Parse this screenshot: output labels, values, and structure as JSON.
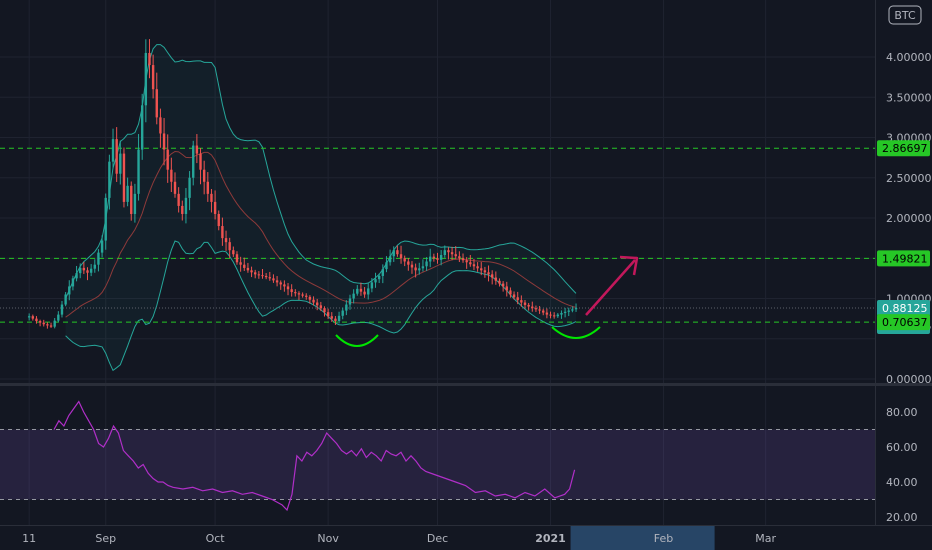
{
  "symbol_label": "BTC",
  "colors": {
    "background": "#131722",
    "grid": "#1f2330",
    "up": "#26a69a",
    "down": "#ef5350",
    "bb_band": "#26a69a",
    "bb_fill": "rgba(38,166,154,0.06)",
    "bb_basis": "#8e3a3a",
    "level_line": "#26c726",
    "rsi_line": "#b02fc8",
    "rsi_band": "rgba(126,87,194,0.18)",
    "arrow": "#c2185b",
    "smile": "#00e600"
  },
  "chart_data": [
    {
      "type": "candlestick",
      "title": "",
      "quote_unit": "BTC",
      "ylim": [
        0,
        4.5
      ],
      "y_ticks": [
        0,
        0.5,
        1.0,
        1.5,
        2.0,
        2.5,
        3.0,
        3.5,
        4.0
      ],
      "y_tick_labels": [
        "0.00000",
        "",
        "1.00000",
        "",
        "2.00000",
        "2.50000",
        "3.00000",
        "3.50000",
        "4.00000"
      ],
      "x_tick_labels": [
        "11",
        "Sep",
        "Oct",
        "Nov",
        "Dec",
        "2021",
        "Feb",
        "Mar"
      ],
      "x_tick_days": [
        0,
        21,
        51,
        82,
        112,
        143,
        174,
        202
      ],
      "x_range_days": [
        -8,
        232
      ],
      "last_data_day": 150,
      "horizontal_levels": [
        2.86697,
        1.49821,
        0.70637
      ],
      "price_labels": [
        {
          "value": 2.86697,
          "text": "2.86697",
          "kind": "level"
        },
        {
          "value": 1.49821,
          "text": "1.49821",
          "kind": "level"
        },
        {
          "value": 0.88125,
          "text": "0.88125",
          "kind": "last"
        },
        {
          "value": 0.8,
          "text": "12:17:45",
          "kind": "timer"
        },
        {
          "value": 0.70637,
          "text": "0.70637",
          "kind": "level"
        }
      ],
      "close_series": [
        [
          0,
          0.78
        ],
        [
          2,
          0.72
        ],
        [
          4,
          0.68
        ],
        [
          6,
          0.65
        ],
        [
          8,
          0.8
        ],
        [
          10,
          1.05
        ],
        [
          12,
          1.25
        ],
        [
          14,
          1.38
        ],
        [
          16,
          1.32
        ],
        [
          18,
          1.42
        ],
        [
          20,
          1.72
        ],
        [
          21,
          2.25
        ],
        [
          22,
          2.7
        ],
        [
          23,
          2.98
        ],
        [
          24,
          2.55
        ],
        [
          25,
          2.8
        ],
        [
          26,
          2.2
        ],
        [
          27,
          2.4
        ],
        [
          28,
          2.05
        ],
        [
          29,
          2.3
        ],
        [
          30,
          2.85
        ],
        [
          31,
          3.4
        ],
        [
          32,
          4.05
        ],
        [
          33,
          3.9
        ],
        [
          34,
          3.6
        ],
        [
          35,
          3.25
        ],
        [
          36,
          3.05
        ],
        [
          37,
          2.85
        ],
        [
          38,
          2.6
        ],
        [
          39,
          2.45
        ],
        [
          40,
          2.3
        ],
        [
          41,
          2.15
        ],
        [
          42,
          2.05
        ],
        [
          43,
          2.25
        ],
        [
          44,
          2.5
        ],
        [
          45,
          2.9
        ],
        [
          46,
          2.8
        ],
        [
          47,
          2.6
        ],
        [
          48,
          2.45
        ],
        [
          49,
          2.3
        ],
        [
          50,
          2.2
        ],
        [
          51,
          2.05
        ],
        [
          52,
          1.9
        ],
        [
          53,
          1.75
        ],
        [
          54,
          1.7
        ],
        [
          55,
          1.6
        ],
        [
          56,
          1.55
        ],
        [
          57,
          1.45
        ],
        [
          58,
          1.42
        ],
        [
          59,
          1.38
        ],
        [
          60,
          1.35
        ],
        [
          62,
          1.3
        ],
        [
          64,
          1.28
        ],
        [
          66,
          1.25
        ],
        [
          68,
          1.2
        ],
        [
          70,
          1.15
        ],
        [
          72,
          1.08
        ],
        [
          74,
          1.05
        ],
        [
          76,
          1.02
        ],
        [
          78,
          0.95
        ],
        [
          80,
          0.88
        ],
        [
          82,
          0.78
        ],
        [
          84,
          0.72
        ],
        [
          86,
          0.85
        ],
        [
          88,
          1.0
        ],
        [
          90,
          1.12
        ],
        [
          92,
          1.05
        ],
        [
          94,
          1.2
        ],
        [
          96,
          1.28
        ],
        [
          98,
          1.45
        ],
        [
          100,
          1.6
        ],
        [
          102,
          1.5
        ],
        [
          104,
          1.42
        ],
        [
          106,
          1.35
        ],
        [
          108,
          1.4
        ],
        [
          110,
          1.52
        ],
        [
          112,
          1.48
        ],
        [
          114,
          1.6
        ],
        [
          116,
          1.55
        ],
        [
          118,
          1.5
        ],
        [
          120,
          1.45
        ],
        [
          122,
          1.4
        ],
        [
          124,
          1.35
        ],
        [
          126,
          1.3
        ],
        [
          128,
          1.22
        ],
        [
          130,
          1.15
        ],
        [
          132,
          1.05
        ],
        [
          134,
          0.98
        ],
        [
          136,
          0.92
        ],
        [
          138,
          0.88
        ],
        [
          140,
          0.85
        ],
        [
          142,
          0.8
        ],
        [
          144,
          0.78
        ],
        [
          146,
          0.82
        ],
        [
          148,
          0.85
        ],
        [
          150,
          0.88125
        ]
      ],
      "indicators": [
        "Bollinger Bands",
        "RSI"
      ]
    },
    {
      "type": "line",
      "title": "",
      "series": [
        {
          "name": "",
          "values": [
            [
              5,
              70
            ],
            [
              6,
              75
            ],
            [
              7,
              72
            ],
            [
              8,
              78
            ],
            [
              9,
              82
            ],
            [
              10,
              86
            ],
            [
              11,
              80
            ],
            [
              12,
              75
            ],
            [
              13,
              70
            ],
            [
              14,
              62
            ],
            [
              15,
              60
            ],
            [
              16,
              65
            ],
            [
              17,
              72
            ],
            [
              18,
              68
            ],
            [
              19,
              58
            ],
            [
              20,
              55
            ],
            [
              21,
              52
            ],
            [
              22,
              48
            ],
            [
              23,
              50
            ],
            [
              24,
              45
            ],
            [
              25,
              42
            ],
            [
              26,
              40
            ],
            [
              27,
              40
            ],
            [
              28,
              38
            ],
            [
              29,
              37
            ],
            [
              31,
              36
            ],
            [
              33,
              37
            ],
            [
              35,
              35
            ],
            [
              37,
              36
            ],
            [
              39,
              34
            ],
            [
              41,
              35
            ],
            [
              43,
              33
            ],
            [
              45,
              34
            ],
            [
              47,
              32
            ],
            [
              49,
              30
            ],
            [
              51,
              27
            ],
            [
              52,
              24
            ],
            [
              53,
              33
            ],
            [
              54,
              55
            ],
            [
              55,
              52
            ],
            [
              56,
              57
            ],
            [
              57,
              55
            ],
            [
              58,
              58
            ],
            [
              59,
              62
            ],
            [
              60,
              68
            ],
            [
              61,
              65
            ],
            [
              62,
              62
            ],
            [
              63,
              58
            ],
            [
              64,
              56
            ],
            [
              65,
              58
            ],
            [
              66,
              55
            ],
            [
              67,
              59
            ],
            [
              68,
              54
            ],
            [
              69,
              57
            ],
            [
              70,
              55
            ],
            [
              71,
              52
            ],
            [
              72,
              58
            ],
            [
              73,
              56
            ],
            [
              74,
              55
            ],
            [
              75,
              57
            ],
            [
              76,
              52
            ],
            [
              77,
              55
            ],
            [
              78,
              52
            ],
            [
              79,
              48
            ],
            [
              80,
              46
            ],
            [
              82,
              44
            ],
            [
              84,
              42
            ],
            [
              86,
              40
            ],
            [
              88,
              38
            ],
            [
              90,
              34
            ],
            [
              92,
              35
            ],
            [
              94,
              32
            ],
            [
              96,
              33
            ],
            [
              98,
              31
            ],
            [
              100,
              34
            ],
            [
              102,
              32
            ],
            [
              104,
              36
            ],
            [
              106,
              31
            ],
            [
              108,
              33
            ],
            [
              109,
              36
            ],
            [
              110,
              47
            ]
          ]
        }
      ],
      "ylim": [
        17,
        92
      ],
      "y_ticks": [
        20,
        40,
        60,
        80
      ],
      "y_tick_labels": [
        "20.00",
        "40.00",
        "60.00",
        "80.00"
      ],
      "levels": [
        70,
        30
      ]
    }
  ]
}
